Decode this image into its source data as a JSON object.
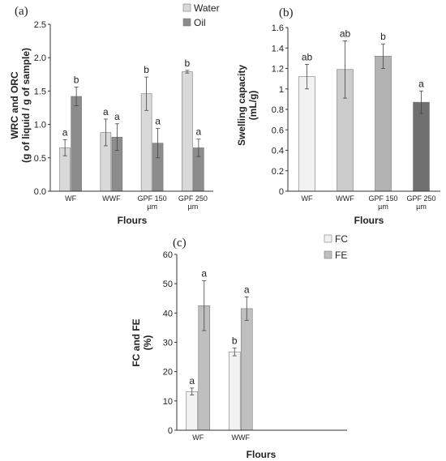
{
  "chart_data": [
    {
      "type": "bar",
      "panel": "(a)",
      "categories": [
        "WF",
        "WWF",
        "GPF 150 µm",
        "GPF 250 µm"
      ],
      "series": [
        {
          "name": "Water",
          "color": "#d9d9d9",
          "values": [
            0.65,
            0.88,
            1.46,
            1.79
          ],
          "errors": [
            0.12,
            0.2,
            0.25,
            0.02
          ],
          "letters": [
            "a",
            "a",
            "b",
            "b"
          ]
        },
        {
          "name": "Oil",
          "color": "#8c8c8c",
          "values": [
            1.42,
            0.81,
            0.72,
            0.65
          ],
          "errors": [
            0.14,
            0.2,
            0.22,
            0.13
          ],
          "letters": [
            "b",
            "a",
            "a",
            "a"
          ]
        }
      ],
      "xlabel": "Flours",
      "ylabel": [
        "WRC and ORC",
        "(g of liquid / g  of sample)"
      ],
      "ylim": [
        0,
        2.5
      ],
      "yticks": [
        "0.0",
        "0.5",
        "1.0",
        "1.5",
        "2.0",
        "2.5"
      ],
      "legend": "top-right"
    },
    {
      "type": "bar",
      "panel": "(b)",
      "categories": [
        "WF",
        "WWF",
        "GPF 150 µm",
        "GPF 250 µm"
      ],
      "values": [
        1.12,
        1.19,
        1.32,
        0.87
      ],
      "errors": [
        0.12,
        0.28,
        0.12,
        0.11
      ],
      "letters": [
        "ab",
        "ab",
        "b",
        "a"
      ],
      "colors": [
        "#f2f2f2",
        "#cccccc",
        "#b3b3b3",
        "#707070"
      ],
      "xlabel": "Flours",
      "ylabel": [
        "Swelling capacity",
        "(mL/g)"
      ],
      "ylim": [
        0,
        1.6
      ],
      "yticks": [
        "0",
        "0.2",
        "0.4",
        "0.6",
        "0.8",
        "1",
        "1.2",
        "1.4",
        "1.6"
      ]
    },
    {
      "type": "bar",
      "panel": "(c)",
      "categories": [
        "WF",
        "WWF"
      ],
      "series": [
        {
          "name": "FC",
          "color": "#f2f2f2",
          "values": [
            13.2,
            26.7
          ],
          "errors": [
            1.2,
            1.3
          ],
          "letters": [
            "a",
            "b"
          ]
        },
        {
          "name": "FE",
          "color": "#bfbfbf",
          "values": [
            42.5,
            41.5
          ],
          "errors": [
            8.5,
            4.0
          ],
          "letters": [
            "a",
            "a"
          ]
        }
      ],
      "xlabel": "Flours",
      "ylabel": [
        "FC and FE",
        "(%)"
      ],
      "ylim": [
        0,
        60
      ],
      "yticks": [
        "0",
        "10",
        "20",
        "30",
        "40",
        "50",
        "60"
      ],
      "legend": "top-right"
    }
  ]
}
